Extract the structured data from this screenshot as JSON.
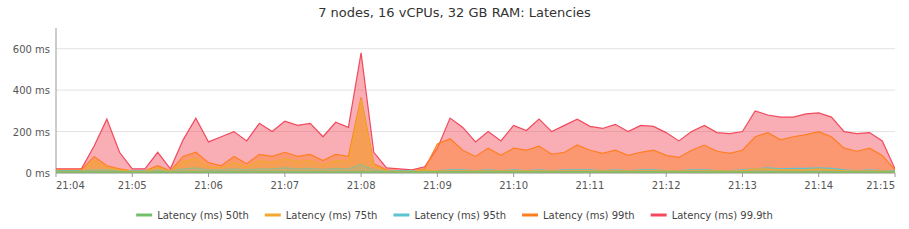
{
  "chart_data": {
    "type": "area",
    "title": "7 nodes, 16 vCPUs, 32 GB RAM: Latencies",
    "x": [
      0,
      1,
      2,
      3,
      4,
      5,
      6,
      7,
      8,
      9,
      10,
      11,
      12,
      13,
      14,
      15,
      16,
      17,
      18,
      19,
      20,
      21,
      22,
      23,
      24,
      25,
      26,
      27,
      28,
      29,
      30,
      31,
      32,
      33,
      34,
      35,
      36,
      37,
      38,
      39,
      40,
      41,
      42,
      43,
      44,
      45,
      46,
      47,
      48,
      49,
      50,
      51,
      52,
      53,
      54,
      55,
      56,
      57,
      58,
      59,
      60,
      61,
      62,
      63,
      64,
      65,
      66
    ],
    "xlim": [
      0,
      66
    ],
    "xticks": [
      {
        "value": 0,
        "label": "21:04"
      },
      {
        "value": 6,
        "label": "21:05"
      },
      {
        "value": 12,
        "label": "21:06"
      },
      {
        "value": 18,
        "label": "21:07"
      },
      {
        "value": 24,
        "label": "21:08"
      },
      {
        "value": 30,
        "label": "21:09"
      },
      {
        "value": 36,
        "label": "21:10"
      },
      {
        "value": 42,
        "label": "21:11"
      },
      {
        "value": 48,
        "label": "21:12"
      },
      {
        "value": 54,
        "label": "21:13"
      },
      {
        "value": 60,
        "label": "21:14"
      },
      {
        "value": 66,
        "label": "21:15"
      }
    ],
    "ylim": [
      0,
      700
    ],
    "yticks": [
      {
        "value": 0,
        "label": "0 ms"
      },
      {
        "value": 200,
        "label": "200 ms"
      },
      {
        "value": 400,
        "label": "400 ms"
      },
      {
        "value": 600,
        "label": "600 ms"
      }
    ],
    "grid": true,
    "legend": "bottom",
    "series": [
      {
        "name": "Latency (ms) 50th",
        "color": "#73bf69",
        "values": [
          5,
          5,
          5,
          5,
          5,
          5,
          4,
          4,
          5,
          4,
          5,
          5,
          5,
          5,
          5,
          5,
          5,
          5,
          5,
          5,
          5,
          5,
          5,
          5,
          5,
          5,
          5,
          4,
          5,
          5,
          5,
          5,
          5,
          5,
          5,
          5,
          5,
          5,
          5,
          5,
          5,
          5,
          5,
          5,
          5,
          5,
          5,
          5,
          5,
          5,
          5,
          5,
          5,
          5,
          5,
          5,
          5,
          5,
          5,
          5,
          5,
          5,
          5,
          5,
          5,
          5,
          5
        ]
      },
      {
        "name": "Latency (ms) 75th",
        "color": "#f0a830",
        "values": [
          8,
          8,
          8,
          60,
          25,
          15,
          8,
          8,
          25,
          8,
          55,
          70,
          30,
          25,
          50,
          30,
          60,
          50,
          70,
          55,
          60,
          40,
          60,
          55,
          355,
          35,
          10,
          8,
          8,
          15,
          10,
          10,
          10,
          10,
          10,
          10,
          10,
          10,
          10,
          10,
          10,
          10,
          10,
          10,
          10,
          10,
          10,
          10,
          10,
          10,
          10,
          10,
          10,
          10,
          10,
          20,
          20,
          15,
          15,
          15,
          20,
          15,
          10,
          10,
          10,
          10,
          8
        ]
      },
      {
        "name": "Latency (ms) 95th",
        "color": "#5bc4d0",
        "values": [
          12,
          12,
          12,
          15,
          15,
          12,
          12,
          12,
          15,
          12,
          20,
          25,
          15,
          15,
          20,
          15,
          20,
          20,
          25,
          20,
          22,
          18,
          22,
          20,
          40,
          15,
          12,
          12,
          12,
          12,
          12,
          15,
          15,
          12,
          15,
          12,
          15,
          12,
          15,
          12,
          15,
          15,
          15,
          12,
          15,
          12,
          15,
          15,
          12,
          12,
          15,
          15,
          12,
          12,
          15,
          20,
          25,
          20,
          22,
          22,
          25,
          22,
          15,
          12,
          15,
          12,
          12
        ]
      },
      {
        "name": "Latency (ms) 99th",
        "color": "#ff7f20",
        "values": [
          15,
          15,
          15,
          80,
          35,
          20,
          10,
          10,
          35,
          10,
          80,
          100,
          50,
          35,
          80,
          45,
          90,
          80,
          100,
          80,
          90,
          60,
          90,
          80,
          365,
          45,
          15,
          12,
          10,
          20,
          140,
          165,
          110,
          80,
          120,
          85,
          120,
          110,
          130,
          90,
          100,
          135,
          110,
          95,
          110,
          85,
          100,
          110,
          85,
          75,
          110,
          135,
          105,
          95,
          110,
          175,
          195,
          160,
          175,
          185,
          200,
          175,
          120,
          105,
          120,
          85,
          15
        ]
      },
      {
        "name": "Latency (ms) 99.9th",
        "color": "#f2495c",
        "values": [
          20,
          20,
          20,
          130,
          260,
          100,
          20,
          20,
          100,
          20,
          160,
          265,
          150,
          175,
          200,
          155,
          240,
          200,
          250,
          230,
          240,
          175,
          245,
          220,
          580,
          100,
          25,
          20,
          15,
          30,
          120,
          265,
          220,
          150,
          200,
          155,
          230,
          205,
          260,
          200,
          230,
          260,
          225,
          215,
          235,
          200,
          230,
          225,
          195,
          155,
          200,
          230,
          195,
          190,
          200,
          300,
          280,
          270,
          270,
          285,
          290,
          270,
          200,
          190,
          195,
          155,
          20
        ]
      }
    ]
  }
}
